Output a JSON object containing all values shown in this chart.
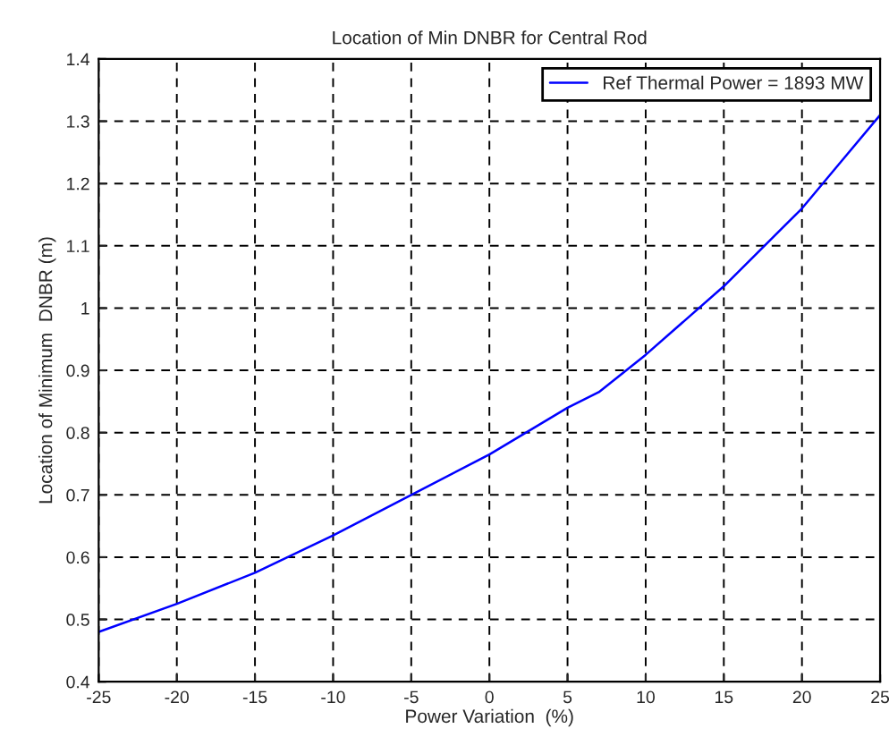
{
  "chart_data": {
    "type": "line",
    "title": "Location of Min DNBR for Central Rod",
    "xlabel": "Power Variation  (%)",
    "ylabel": "Location of Minimum  DNBR (m)",
    "series": [
      {
        "name": "Ref Thermal Power = 1893 MW",
        "color": "#0000ff",
        "x": [
          -25,
          -20,
          -15,
          -10,
          -5,
          0,
          5,
          7,
          10,
          12.5,
          15,
          18,
          20,
          22.5,
          25
        ],
        "values": [
          0.48,
          0.525,
          0.575,
          0.635,
          0.7,
          0.765,
          0.84,
          0.865,
          0.925,
          0.98,
          1.035,
          1.11,
          1.16,
          1.235,
          1.31
        ]
      }
    ],
    "xlim": [
      -25,
      25
    ],
    "xticks": [
      -25,
      -20,
      -15,
      -10,
      -5,
      0,
      5,
      10,
      15,
      20,
      25
    ],
    "ylim": [
      0.4,
      1.4
    ],
    "yticks": [
      0.4,
      0.5,
      0.6,
      0.7,
      0.8,
      0.9,
      1,
      1.1,
      1.2,
      1.3,
      1.4
    ],
    "grid": true,
    "legend": "top right",
    "line_style": "solid",
    "marker": "none"
  }
}
